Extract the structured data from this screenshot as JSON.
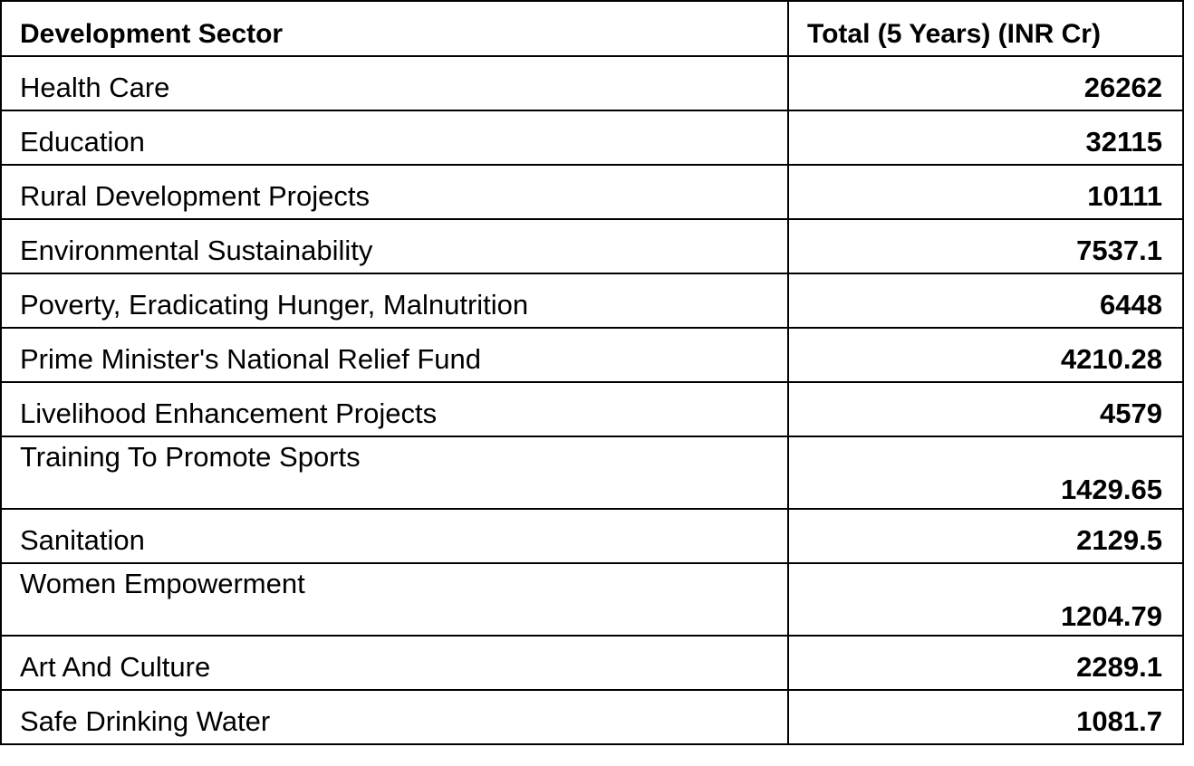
{
  "table": {
    "headers": {
      "sector": "Development Sector",
      "total": "Total (5 Years) (INR Cr)"
    },
    "rows": [
      {
        "sector": "Health Care",
        "total": "26262"
      },
      {
        "sector": "Education",
        "total": "32115"
      },
      {
        "sector": "Rural Development Projects",
        "total": "10111"
      },
      {
        "sector": "Environmental Sustainability",
        "total": "7537.1"
      },
      {
        "sector": "Poverty, Eradicating Hunger, Malnutrition",
        "total": "6448"
      },
      {
        "sector": "Prime Minister's National Relief Fund",
        "total": "4210.28"
      },
      {
        "sector": "Livelihood Enhancement Projects",
        "total": "4579"
      },
      {
        "sector": "Training To Promote Sports",
        "total": "1429.65"
      },
      {
        "sector": "Sanitation",
        "total": "2129.5"
      },
      {
        "sector": "Women Empowerment",
        "total": "1204.79"
      },
      {
        "sector": "Art And Culture",
        "total": "2289.1"
      },
      {
        "sector": "Safe Drinking Water",
        "total": "1081.7"
      }
    ]
  }
}
